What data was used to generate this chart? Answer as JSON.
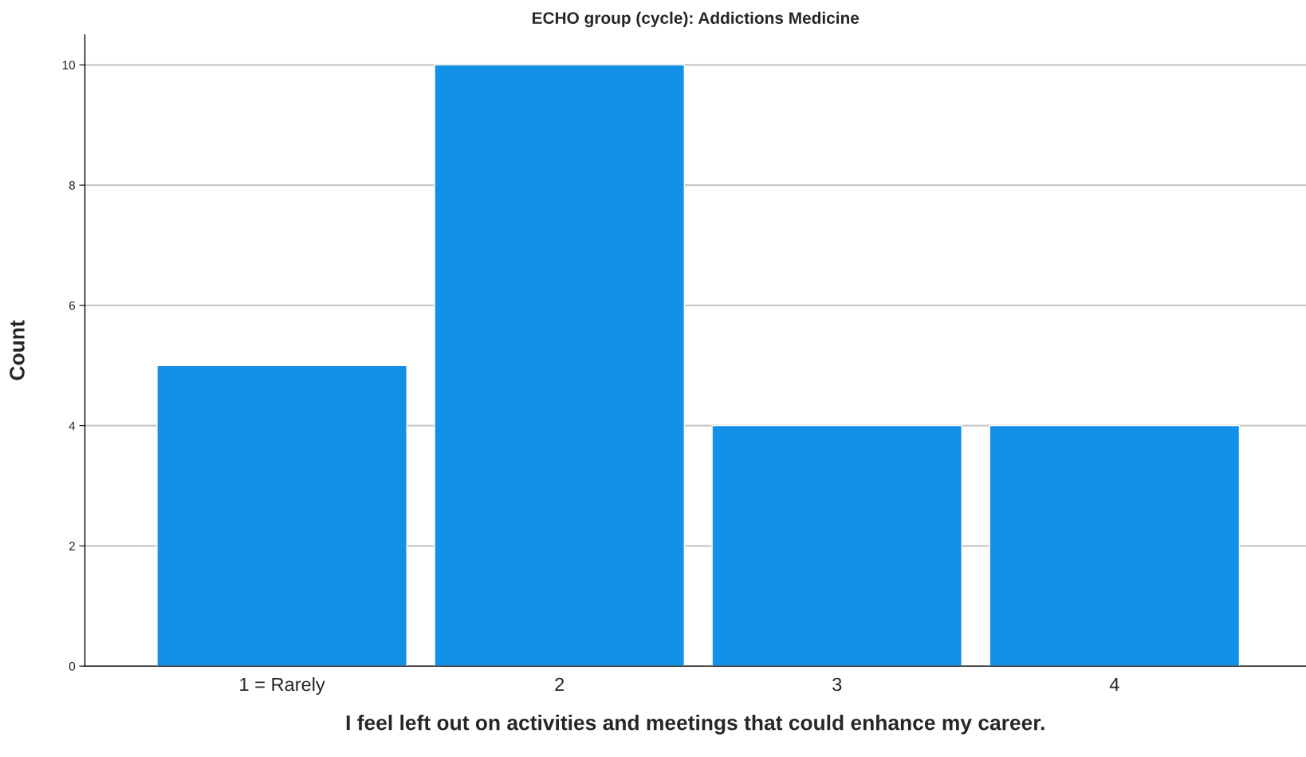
{
  "chart_data": {
    "type": "bar",
    "title": "ECHO group (cycle): Addictions Medicine",
    "xlabel": "I feel left out on activities and meetings that could enhance my career.",
    "ylabel": "Count",
    "categories": [
      "1 = Rarely",
      "2",
      "3",
      "4"
    ],
    "values": [
      5,
      10,
      4,
      4
    ],
    "color": "#1391e6",
    "ylim": [
      0,
      10.5
    ],
    "yticks": [
      0,
      2,
      4,
      6,
      8,
      10
    ],
    "grid": "y",
    "legend": false
  }
}
